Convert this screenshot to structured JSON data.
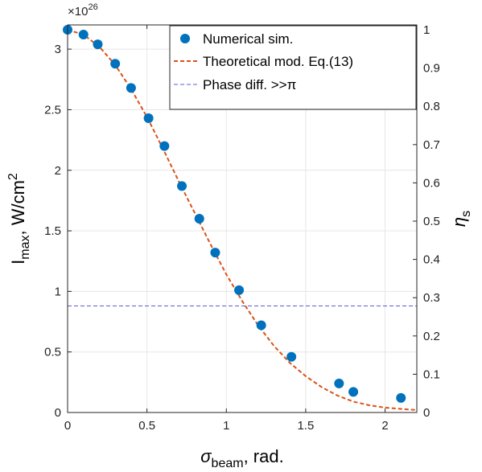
{
  "chart_data": {
    "type": "scatter",
    "x_axis": {
      "label_main": "σ",
      "label_sub": "beam",
      "label_rest": ", rad.",
      "range": [
        0,
        2.2
      ],
      "ticks": [
        0,
        0.5,
        1,
        1.5,
        2
      ],
      "tick_labels": [
        "0",
        "0.5",
        "1",
        "1.5",
        "2"
      ]
    },
    "y_left": {
      "label_main": "I",
      "label_sub": "max",
      "label_rest": ", W/cm",
      "label_sup": "2",
      "exponent_prefix": "×10",
      "exponent_value": "26",
      "range": [
        0,
        3.2
      ],
      "ticks": [
        0,
        0.5,
        1,
        1.5,
        2,
        2.5,
        3
      ],
      "tick_labels": [
        "0",
        "0.5",
        "1",
        "1.5",
        "2",
        "2.5",
        "3"
      ]
    },
    "y_right": {
      "label_main": "η",
      "label_sub": "s",
      "range": [
        0,
        1.0127
      ],
      "ticks": [
        0,
        0.1,
        0.2,
        0.3,
        0.4,
        0.5,
        0.6,
        0.7,
        0.8,
        0.9,
        1
      ],
      "tick_labels": [
        "0",
        "0.1",
        "0.2",
        "0.3",
        "0.4",
        "0.5",
        "0.6",
        "0.7",
        "0.8",
        "0.9",
        "1"
      ]
    },
    "grid": true,
    "legend_position": "top-right",
    "series": [
      {
        "name": "Numerical sim.",
        "kind": "scatter",
        "color": "#0072bd",
        "x": [
          0,
          0.1,
          0.19,
          0.3,
          0.4,
          0.51,
          0.61,
          0.72,
          0.83,
          0.93,
          1.08,
          1.22,
          1.41,
          1.71,
          1.8,
          2.1
        ],
        "y": [
          3.16,
          3.12,
          3.04,
          2.88,
          2.68,
          2.43,
          2.2,
          1.87,
          1.6,
          1.32,
          1.01,
          0.72,
          0.46,
          0.24,
          0.17,
          0.12
        ]
      },
      {
        "name": "Theoretical mod. Eq.(13)",
        "kind": "line",
        "style": "dashed",
        "color": "#d95319",
        "x": [
          0,
          0.1,
          0.2,
          0.3,
          0.4,
          0.5,
          0.6,
          0.7,
          0.8,
          0.9,
          1.0,
          1.1,
          1.2,
          1.3,
          1.4,
          1.5,
          1.6,
          1.7,
          1.8,
          1.9,
          2.0,
          2.1,
          2.2
        ],
        "y": [
          3.16,
          3.12,
          3.02,
          2.87,
          2.67,
          2.44,
          2.18,
          1.91,
          1.65,
          1.39,
          1.14,
          0.92,
          0.72,
          0.55,
          0.41,
          0.3,
          0.21,
          0.14,
          0.09,
          0.06,
          0.04,
          0.03,
          0.02
        ]
      },
      {
        "name": "Phase diff. >>π",
        "kind": "hline",
        "style": "dashed",
        "color": "#5b5bd6",
        "y": 0.88
      }
    ]
  }
}
